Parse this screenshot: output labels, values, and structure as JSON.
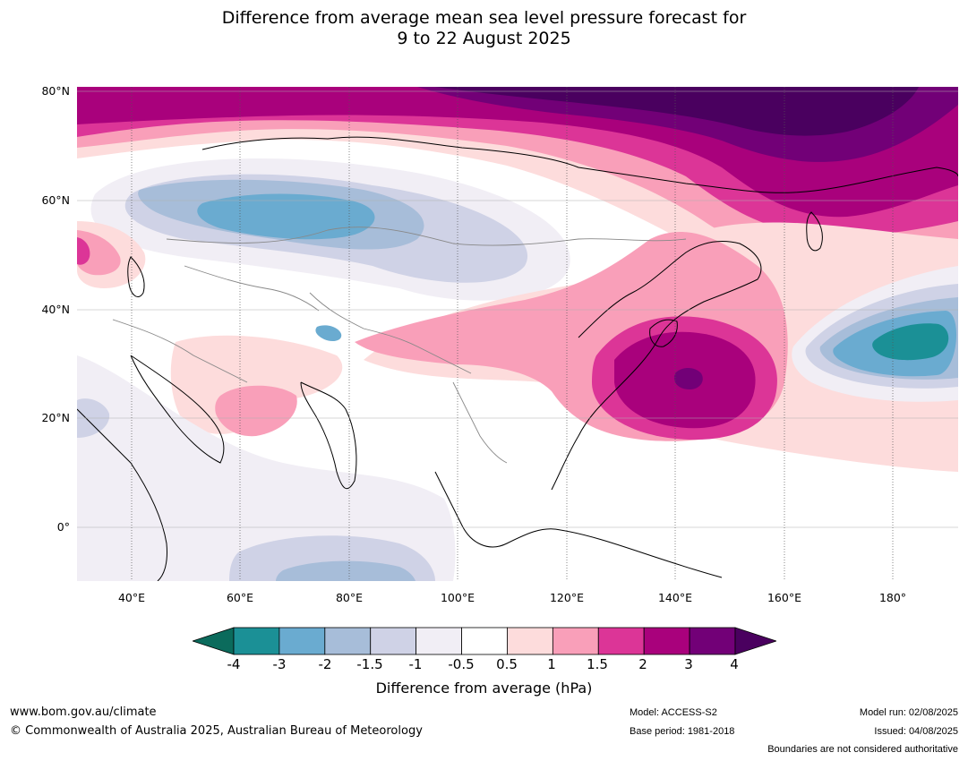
{
  "title": {
    "line1": "Difference from average mean sea level pressure forecast for",
    "line2": "9 to 22 August 2025"
  },
  "map": {
    "lat_labels": [
      "80°N",
      "60°N",
      "40°N",
      "20°N",
      "0°"
    ],
    "lat_values": [
      80,
      60,
      40,
      20,
      0
    ],
    "lon_labels": [
      "40°E",
      "60°E",
      "80°E",
      "100°E",
      "120°E",
      "140°E",
      "160°E",
      "180°"
    ],
    "lon_values": [
      40,
      60,
      80,
      100,
      120,
      140,
      160,
      180
    ],
    "lon_range": [
      30,
      192
    ],
    "lat_range": [
      -10,
      81
    ]
  },
  "colorbar": {
    "title": "Difference from average (hPa)",
    "ticks": [
      "-4",
      "-3",
      "-2",
      "-1.5",
      "-1",
      "-0.5",
      "0.5",
      "1",
      "1.5",
      "2",
      "3",
      "4"
    ],
    "colors": {
      "below_min": "#0b6b5c",
      "bins": [
        "#1b9096",
        "#6aabd0",
        "#a7bdd9",
        "#cfd2e6",
        "#f1eef5",
        "#ffffff",
        "#fddcdc",
        "#f99fb9",
        "#dc3597",
        "#a9017c",
        "#720077"
      ],
      "above_max": "#4a005f"
    }
  },
  "footer": {
    "website": "www.bom.gov.au/climate",
    "copyright": "© Commonwealth of Australia 2025, Australian Bureau of Meteorology",
    "model": "Model: ACCESS-S2",
    "base_period": "Base period: 1981-2018",
    "model_run": "Model run: 02/08/2025",
    "issued": "Issued: 04/08/2025",
    "disclaimer": "Boundaries are not considered authoritative"
  }
}
